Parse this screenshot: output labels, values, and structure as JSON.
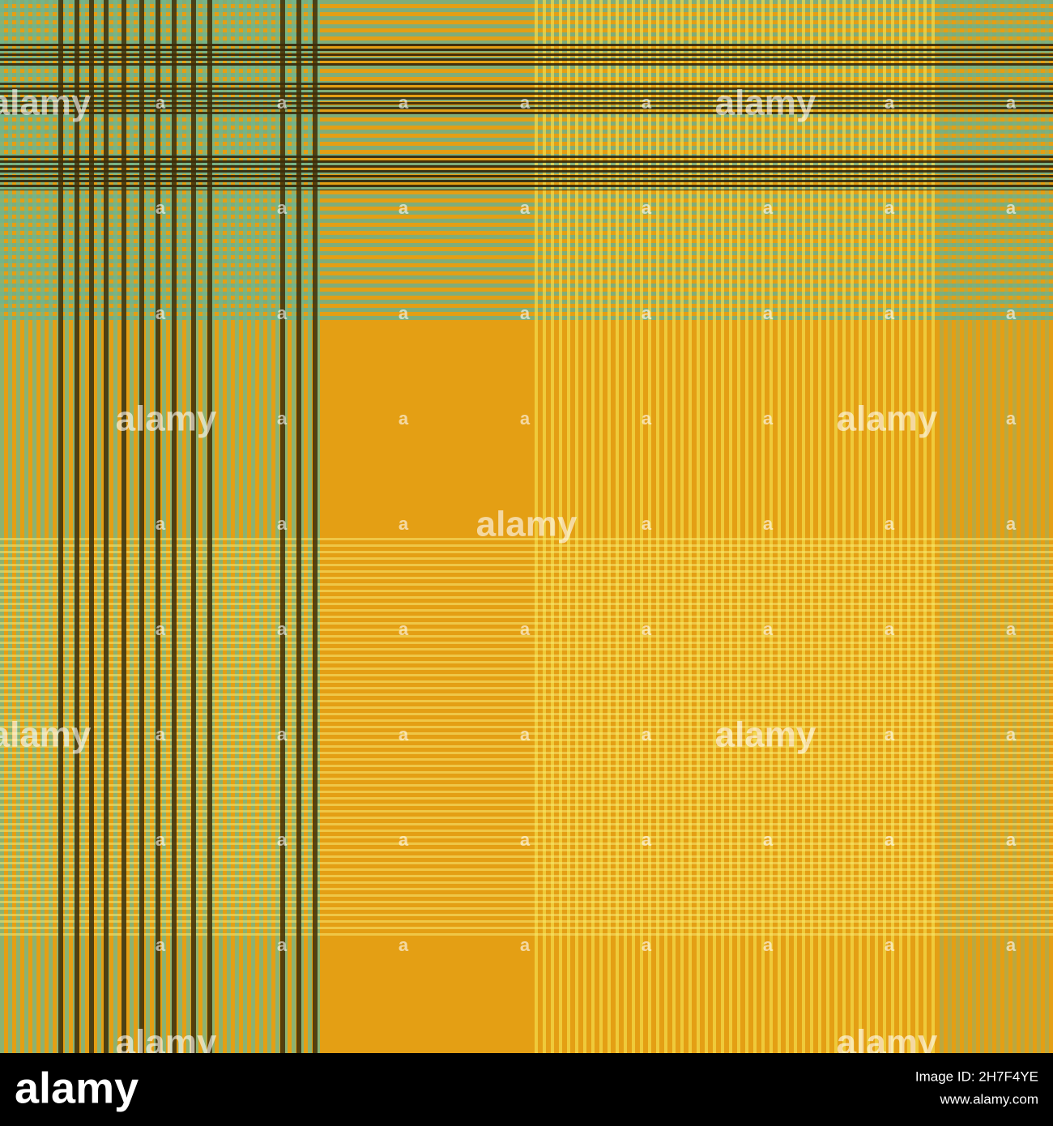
{
  "watermark": {
    "logo": "alamy",
    "mark": "a"
  },
  "footer": {
    "logo": "alamy",
    "image_id": "Image ID: 2H7F4YE",
    "url": "www.alamy.com"
  }
}
